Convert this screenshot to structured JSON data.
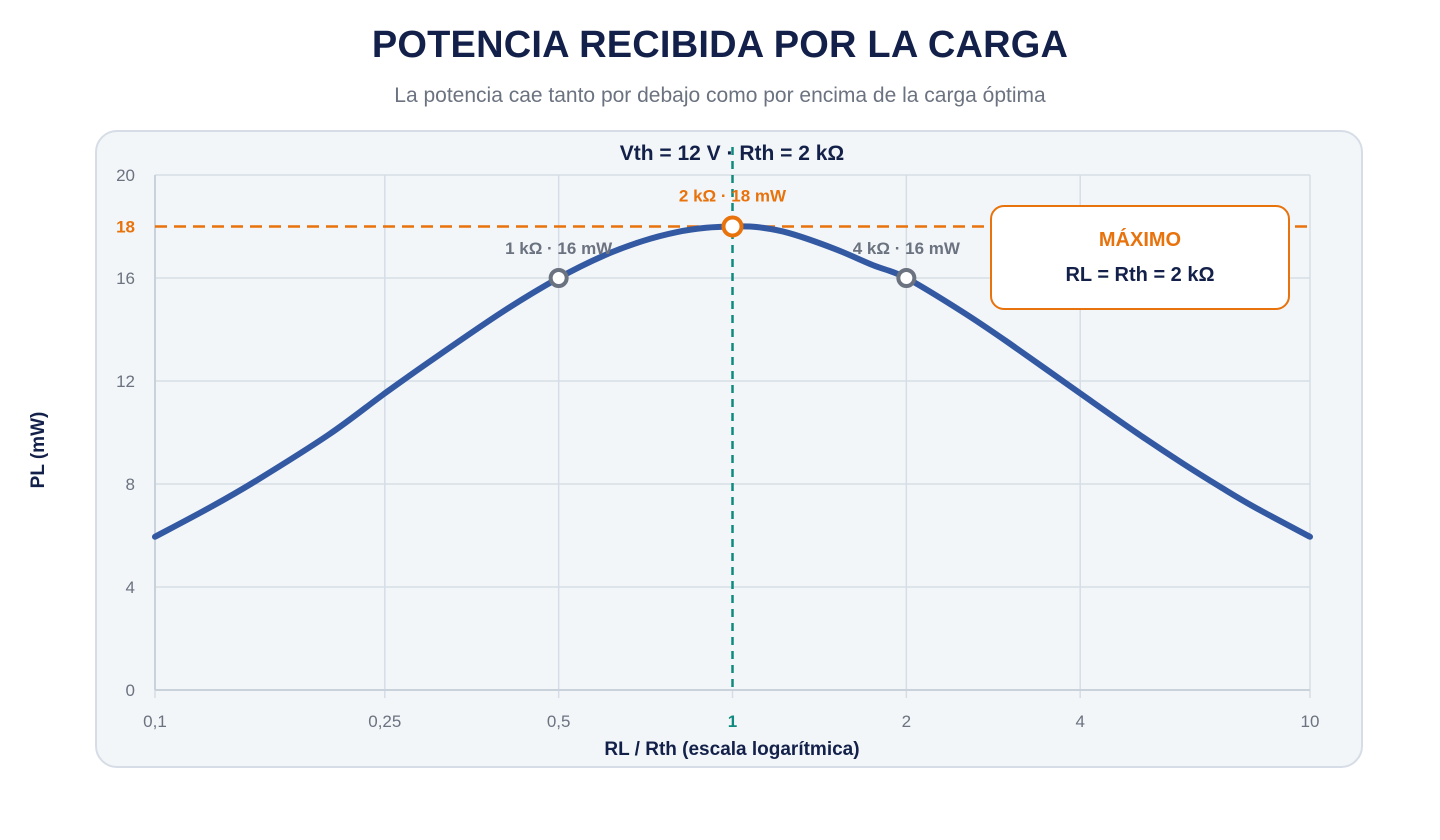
{
  "header": {
    "title": "POTENCIA RECIBIDA POR LA CARGA",
    "subtitle": "La potencia cae tanto por debajo como por encima de la carga óptima"
  },
  "chart_data": {
    "type": "line",
    "title": "Vth = 12 V · Rth = 2 kΩ",
    "xlabel": "RL / Rth (escala logarítmica)",
    "ylabel": "PL (mW)",
    "x_scale": "log",
    "xlim": [
      0.1,
      10
    ],
    "ylim": [
      0,
      20
    ],
    "x_ticks": [
      {
        "value": 0.1,
        "label": "0,1"
      },
      {
        "value": 0.25,
        "label": "0,25"
      },
      {
        "value": 0.5,
        "label": "0,5"
      },
      {
        "value": 1,
        "label": "1"
      },
      {
        "value": 2,
        "label": "2"
      },
      {
        "value": 4,
        "label": "4"
      },
      {
        "value": 10,
        "label": "10"
      }
    ],
    "y_ticks": [
      {
        "value": 0,
        "label": "0"
      },
      {
        "value": 4,
        "label": "4"
      },
      {
        "value": 8,
        "label": "8"
      },
      {
        "value": 12,
        "label": "12"
      },
      {
        "value": 16,
        "label": "16"
      },
      {
        "value": 18,
        "label": "18"
      },
      {
        "value": 20,
        "label": "20"
      }
    ],
    "grid": true,
    "series": [
      {
        "color": "#3459a3",
        "x": [
          0.1,
          0.125,
          0.15,
          0.2,
          0.25,
          0.3,
          0.4,
          0.5,
          0.6,
          0.7,
          0.8,
          0.9,
          1,
          1.1,
          1.25,
          1.5,
          1.75,
          2,
          2.5,
          3,
          4,
          5,
          6,
          7,
          8,
          10
        ],
        "y": [
          5.95,
          7.11,
          8.14,
          9.92,
          11.52,
          12.78,
          14.69,
          16.0,
          16.88,
          17.44,
          17.78,
          17.95,
          18.0,
          17.98,
          17.75,
          17.14,
          16.5,
          16.0,
          14.69,
          13.5,
          11.52,
          10.0,
          8.82,
          7.88,
          7.11,
          5.95
        ]
      }
    ],
    "points": [
      {
        "x": 0.5,
        "y": 16,
        "label": "1 kΩ · 16 mW",
        "color": "#6b7280"
      },
      {
        "x": 1,
        "y": 18,
        "label": "2 kΩ · 18 mW",
        "color": "#e8720c"
      },
      {
        "x": 2,
        "y": 16,
        "label": "4 kΩ · 16 mW",
        "color": "#6b7280"
      }
    ],
    "reference_lines": {
      "horizontal": {
        "y": 18,
        "color": "#e8720c"
      },
      "vertical": {
        "x": 1,
        "color": "#0f8a7e"
      }
    },
    "annotation": {
      "title": "MÁXIMO",
      "text": "RL = Rth = 2 kΩ"
    },
    "colors": {
      "accent": "#e8720c",
      "teal": "#0f8a7e",
      "curve": "#3459a3",
      "grid": "#d6dde6",
      "text": "#13214a",
      "muted": "#6b7280"
    }
  }
}
